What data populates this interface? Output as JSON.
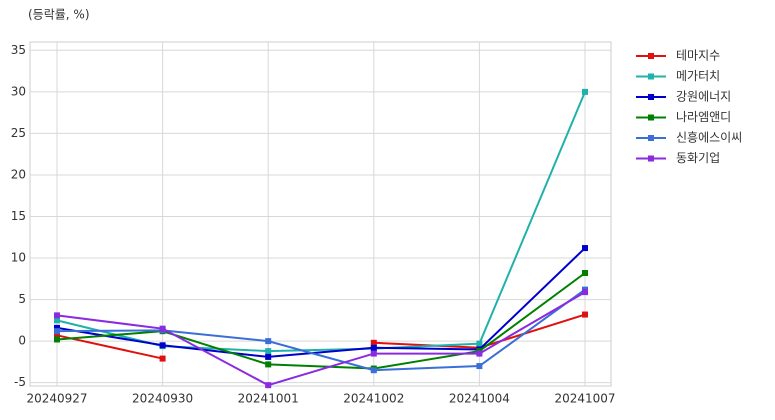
{
  "chart_data": {
    "type": "line",
    "y_label": "(등락률, %)",
    "categories": [
      "20240927",
      "20240930",
      "20241001",
      "20241002",
      "20241004",
      "20241007"
    ],
    "series": [
      {
        "name": "테마지수",
        "color": "#e01010",
        "values": [
          0.7,
          -2.1,
          null,
          -0.2,
          -0.8,
          3.2
        ]
      },
      {
        "name": "메가터치",
        "color": "#20b2aa",
        "values": [
          2.5,
          -0.6,
          -1.2,
          -0.9,
          -0.3,
          30.0
        ]
      },
      {
        "name": "강원에너지",
        "color": "#0000cd",
        "values": [
          1.6,
          -0.5,
          -1.9,
          -0.8,
          -1.0,
          11.2
        ]
      },
      {
        "name": "나라엠앤디",
        "color": "#008000",
        "values": [
          0.2,
          1.2,
          -2.8,
          -3.3,
          -1.2,
          8.2
        ]
      },
      {
        "name": "신흥에스이씨",
        "color": "#3a6fd8",
        "values": [
          1.2,
          1.3,
          0.0,
          -3.5,
          -3.0,
          6.2
        ]
      },
      {
        "name": "동화기업",
        "color": "#8a2be2",
        "values": [
          3.1,
          1.5,
          -5.3,
          -1.5,
          -1.5,
          5.9
        ]
      }
    ],
    "ylim": [
      -5.4,
      36
    ],
    "yticks": [
      -5,
      0,
      5,
      10,
      15,
      20,
      25,
      30,
      35
    ],
    "grid": true,
    "legend": "outside-right"
  }
}
